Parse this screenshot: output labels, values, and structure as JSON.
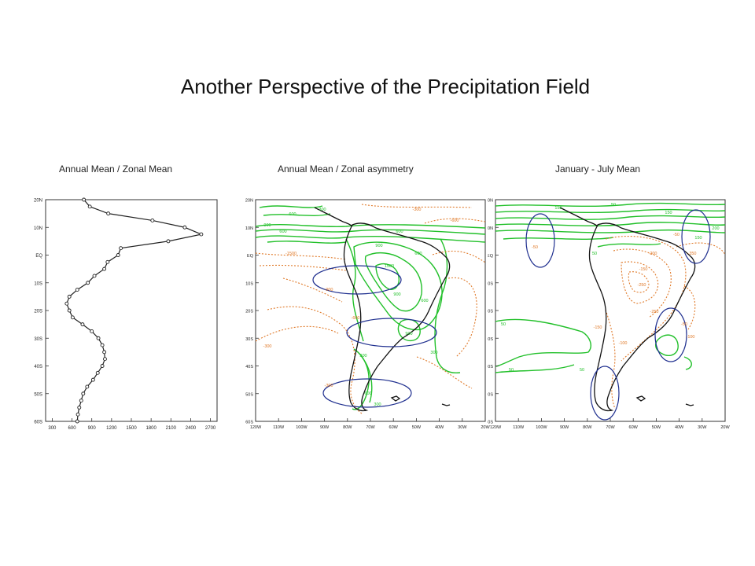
{
  "slide": {
    "title": "Another Perspective of the Precipitation Field"
  },
  "panels": [
    {
      "caption": "Annual Mean / Zonal Mean"
    },
    {
      "caption": "Annual Mean / Zonal asymmetry"
    },
    {
      "caption": "January - July Mean"
    }
  ],
  "map_axes": {
    "lat_ticks": [
      "20N",
      "10N",
      "EQ",
      "10S",
      "20S",
      "30S",
      "40S",
      "50S",
      "60S"
    ],
    "lon_ticks": [
      "120W",
      "110W",
      "100W",
      "90W",
      "80W",
      "70W",
      "60W",
      "50W",
      "40W",
      "30W",
      "20W"
    ]
  },
  "colors": {
    "positive_contour": "#22c02a",
    "negative_contour": "#e07a2a",
    "highlight_ellipse": "#1f2f8f",
    "line": "#222222"
  },
  "chart_data": [
    {
      "type": "line",
      "title": "Annual Mean / Zonal Mean",
      "y_ticks": [
        "20N",
        "10N",
        "EQ",
        "10S",
        "20S",
        "30S",
        "40S",
        "50S",
        "60S"
      ],
      "x_ticks": [
        "300",
        "600",
        "900",
        "1200",
        "1500",
        "1800",
        "2100",
        "2400",
        "2700"
      ],
      "xlim": [
        200,
        2800
      ],
      "ylim": [
        -60,
        20
      ],
      "grid": false,
      "series": [
        {
          "points": [
            {
              "lat": 20,
              "value": 780
            },
            {
              "lat": 17.5,
              "value": 870
            },
            {
              "lat": 15,
              "value": 1150
            },
            {
              "lat": 12.5,
              "value": 1820
            },
            {
              "lat": 10,
              "value": 2310
            },
            {
              "lat": 7.5,
              "value": 2560
            },
            {
              "lat": 5,
              "value": 2060
            },
            {
              "lat": 2.5,
              "value": 1340
            },
            {
              "lat": 0,
              "value": 1300
            },
            {
              "lat": -2.5,
              "value": 1140
            },
            {
              "lat": -5,
              "value": 1090
            },
            {
              "lat": -7.5,
              "value": 940
            },
            {
              "lat": -10,
              "value": 840
            },
            {
              "lat": -12.5,
              "value": 680
            },
            {
              "lat": -15,
              "value": 560
            },
            {
              "lat": -17.5,
              "value": 520
            },
            {
              "lat": -20,
              "value": 560
            },
            {
              "lat": -22.5,
              "value": 610
            },
            {
              "lat": -25,
              "value": 760
            },
            {
              "lat": -27.5,
              "value": 900
            },
            {
              "lat": -30,
              "value": 1000
            },
            {
              "lat": -32.5,
              "value": 1060
            },
            {
              "lat": -35,
              "value": 1090
            },
            {
              "lat": -37.5,
              "value": 1100
            },
            {
              "lat": -40,
              "value": 1060
            },
            {
              "lat": -42.5,
              "value": 990
            },
            {
              "lat": -45,
              "value": 920
            },
            {
              "lat": -47.5,
              "value": 830
            },
            {
              "lat": -50,
              "value": 770
            },
            {
              "lat": -52.5,
              "value": 740
            },
            {
              "lat": -55,
              "value": 710
            },
            {
              "lat": -57.5,
              "value": 690
            },
            {
              "lat": -60,
              "value": 680
            }
          ]
        }
      ]
    },
    {
      "type": "contour",
      "title": "Annual Mean / Zonal asymmetry",
      "lat_range": [
        -60,
        20
      ],
      "lon_range": [
        -120,
        -20
      ],
      "contour_labels": [
        "300",
        "600",
        "900",
        "1200",
        "1500",
        "-300",
        "-600",
        "-900",
        "-1500"
      ]
    },
    {
      "type": "contour",
      "title": "January - July Mean",
      "lat_range": [
        -60,
        20
      ],
      "lon_range": [
        -120,
        -20
      ],
      "contour_labels": [
        "50",
        "100",
        "150",
        "200",
        "250",
        "-50",
        "-100",
        "-150",
        "-200",
        "-250",
        "-350"
      ]
    }
  ]
}
